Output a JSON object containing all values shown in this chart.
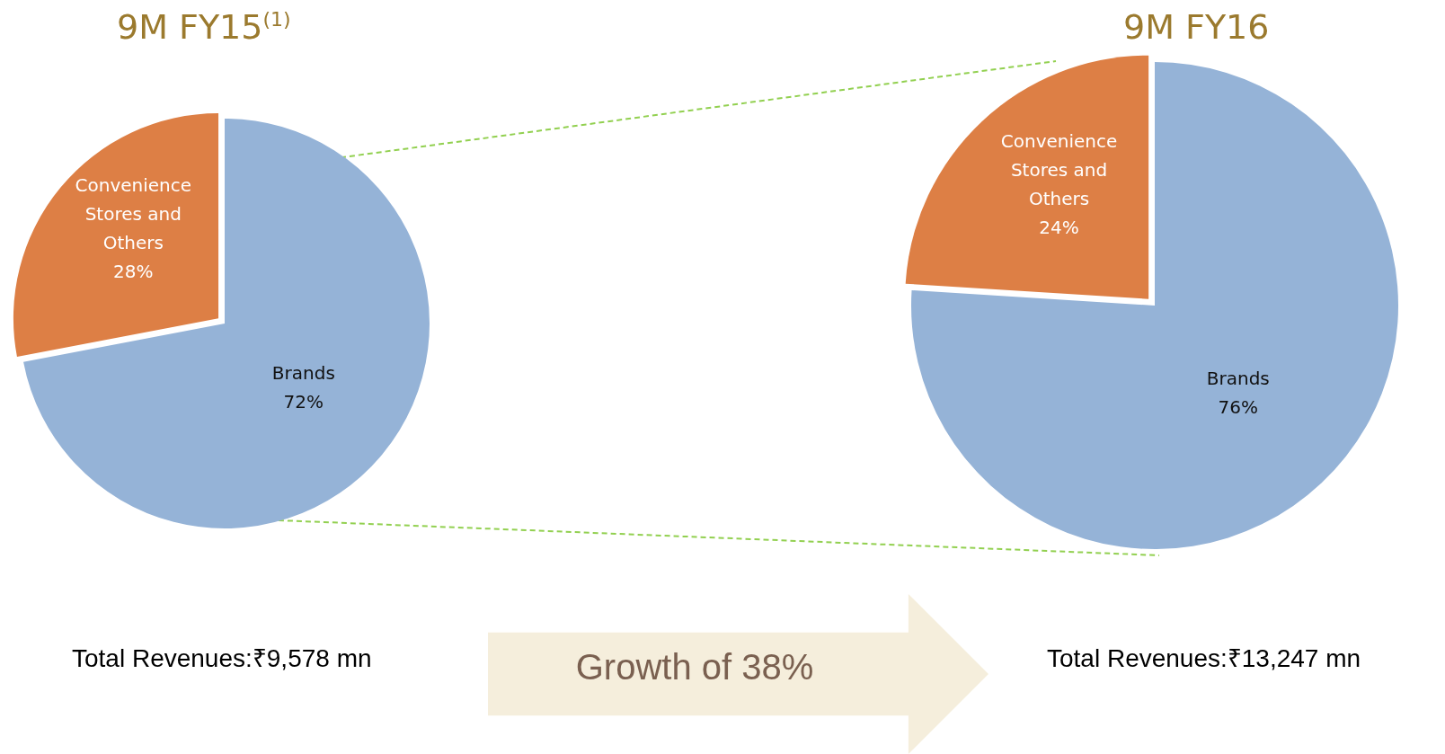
{
  "chart_data": [
    {
      "type": "pie",
      "title": "9M FY15$^{(1)}$",
      "categories": [
        "Convenience Stores and Others",
        "Brands"
      ],
      "values": [
        28,
        72
      ],
      "colors": [
        "#dd7f45",
        "#95b3d7"
      ],
      "value_labels": [
        "28%",
        "72%"
      ],
      "annotations": [
        "Total Revenues:₹9,578 mn"
      ]
    },
    {
      "type": "pie",
      "title": "9M FY16",
      "categories": [
        "Convenience Stores and Others",
        "Brands"
      ],
      "values": [
        24,
        76
      ],
      "colors": [
        "#dd7f45",
        "#95b3d7"
      ],
      "value_labels": [
        "24%",
        "76%"
      ],
      "annotations": [
        "Total Revenues:₹13,247 mn"
      ]
    },
    {
      "type": "other",
      "annotations": [
        "Growth of 38%"
      ]
    }
  ]
}
